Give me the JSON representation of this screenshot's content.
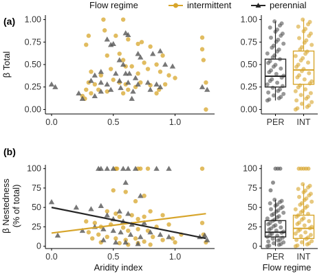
{
  "colors": {
    "intermittent": "#d7a52b",
    "perennial": "#262626",
    "point_perennial": "#555555"
  },
  "legend": {
    "title": "Flow regime",
    "items": [
      "intermittent",
      "perennial"
    ]
  },
  "panels": {
    "a": "(a)",
    "b": "(b)"
  },
  "axes": {
    "a_ylabel": "β Total",
    "b_ylabel_line1": "β Nestedness",
    "b_ylabel_line2": "(% of total)",
    "xlabel_scatter": "Aridity index",
    "xlabel_box": "Flow regime"
  },
  "chart_data": [
    {
      "type": "scatter",
      "panel": "a-left",
      "xlabel": "",
      "ylabel": "β Total",
      "xlim": [
        -0.05,
        1.32
      ],
      "ylim": [
        -0.05,
        1.05
      ],
      "xticks": [
        "0.0",
        "0.5",
        "1.0"
      ],
      "yticks": [
        "0.00",
        "0.25",
        "0.50",
        "0.75",
        "1.00"
      ],
      "series": [
        {
          "name": "intermittent",
          "marker": "circle",
          "points": [
            [
              0.42,
              1.0
            ],
            [
              0.43,
              0.88
            ],
            [
              0.58,
              1.0
            ],
            [
              0.3,
              0.82
            ],
            [
              0.28,
              0.72
            ],
            [
              0.62,
              0.78
            ],
            [
              0.52,
              0.82
            ],
            [
              0.7,
              0.73
            ],
            [
              0.73,
              0.75
            ],
            [
              0.8,
              0.7
            ],
            [
              0.55,
              0.62
            ],
            [
              0.58,
              0.55
            ],
            [
              0.6,
              0.48
            ],
            [
              0.45,
              0.6
            ],
            [
              0.48,
              0.45
            ],
            [
              0.65,
              0.48
            ],
            [
              0.7,
              0.4
            ],
            [
              0.78,
              0.45
            ],
            [
              0.75,
              0.52
            ],
            [
              0.85,
              0.5
            ],
            [
              0.88,
              0.42
            ],
            [
              0.32,
              0.42
            ],
            [
              0.4,
              0.38
            ],
            [
              0.5,
              0.33
            ],
            [
              0.55,
              0.3
            ],
            [
              0.6,
              0.28
            ],
            [
              0.68,
              0.25
            ],
            [
              0.72,
              0.3
            ],
            [
              0.8,
              0.27
            ],
            [
              0.92,
              0.28
            ],
            [
              0.95,
              0.38
            ],
            [
              0.3,
              0.3
            ],
            [
              0.35,
              0.28
            ],
            [
              0.38,
              0.22
            ],
            [
              0.32,
              0.18
            ],
            [
              0.28,
              0.22
            ],
            [
              0.25,
              0.15
            ],
            [
              0.27,
              0.12
            ],
            [
              0.45,
              0.2
            ],
            [
              0.58,
              0.18
            ],
            [
              0.62,
              0.22
            ],
            [
              0.85,
              0.18
            ],
            [
              0.87,
              0.22
            ],
            [
              1.22,
              0.8
            ],
            [
              1.22,
              0.67
            ],
            [
              1.23,
              0.55
            ],
            [
              1.25,
              0.3
            ],
            [
              1.25,
              0.0
            ],
            [
              0.9,
              0.6
            ],
            [
              1.0,
              0.35
            ]
          ]
        },
        {
          "name": "perennial",
          "marker": "triangle",
          "points": [
            [
              0.6,
              0.85
            ],
            [
              0.62,
              0.83
            ],
            [
              0.45,
              0.78
            ],
            [
              0.5,
              0.73
            ],
            [
              0.48,
              0.72
            ],
            [
              0.7,
              0.62
            ],
            [
              0.72,
              0.58
            ],
            [
              0.55,
              0.55
            ],
            [
              0.58,
              0.5
            ],
            [
              0.82,
              0.62
            ],
            [
              0.88,
              0.65
            ],
            [
              0.92,
              0.5
            ],
            [
              0.98,
              0.48
            ],
            [
              0.63,
              0.4
            ],
            [
              0.68,
              0.35
            ],
            [
              0.52,
              0.4
            ],
            [
              0.6,
              0.4
            ],
            [
              0.4,
              0.42
            ],
            [
              0.35,
              0.38
            ],
            [
              0.32,
              0.32
            ],
            [
              0.4,
              0.3
            ],
            [
              0.45,
              0.28
            ],
            [
              0.55,
              0.32
            ],
            [
              0.62,
              0.3
            ],
            [
              0.7,
              0.28
            ],
            [
              0.78,
              0.3
            ],
            [
              0.85,
              0.28
            ],
            [
              0.88,
              0.25
            ],
            [
              0.4,
              0.2
            ],
            [
              0.48,
              0.22
            ],
            [
              0.56,
              0.24
            ],
            [
              0.66,
              0.2
            ],
            [
              0.8,
              0.22
            ],
            [
              0.35,
              0.15
            ],
            [
              0.25,
              0.12
            ],
            [
              0.22,
              0.18
            ],
            [
              0.0,
              0.28
            ],
            [
              0.03,
              0.25
            ],
            [
              0.65,
              0.12
            ],
            [
              1.22,
              0.25
            ],
            [
              1.26,
              0.22
            ]
          ]
        }
      ]
    },
    {
      "type": "box",
      "panel": "a-right",
      "categories": [
        "PER",
        "INT"
      ],
      "ylim": [
        -0.05,
        1.05
      ],
      "yticks": [
        "0.00",
        "0.25",
        "0.50",
        "0.75",
        "1.00"
      ],
      "series": [
        {
          "name": "PER",
          "min": 0.1,
          "q1": 0.25,
          "median": 0.37,
          "q3": 0.56,
          "max": 0.98
        },
        {
          "name": "INT",
          "min": 0.0,
          "q1": 0.28,
          "median": 0.44,
          "q3": 0.65,
          "max": 1.0
        }
      ]
    },
    {
      "type": "scatter",
      "panel": "b-left",
      "xlabel": "Aridity index",
      "ylabel": "β Nestedness (% of total)",
      "xlim": [
        -0.05,
        1.32
      ],
      "ylim": [
        -3,
        105
      ],
      "xticks": [
        "0.0",
        "0.5",
        "1.0"
      ],
      "yticks": [
        "0",
        "25",
        "50",
        "75",
        "100"
      ],
      "series": [
        {
          "name": "intermittent",
          "marker": "circle",
          "points": [
            [
              0.52,
              100
            ],
            [
              0.53,
              100
            ],
            [
              0.7,
              100
            ],
            [
              0.72,
              100
            ],
            [
              0.78,
              100
            ],
            [
              1.22,
              100
            ],
            [
              0.5,
              72
            ],
            [
              0.6,
              70
            ],
            [
              0.75,
              65
            ],
            [
              0.68,
              58
            ],
            [
              0.45,
              45
            ],
            [
              0.52,
              42
            ],
            [
              0.55,
              38
            ],
            [
              0.65,
              40
            ],
            [
              0.7,
              35
            ],
            [
              0.75,
              38
            ],
            [
              0.8,
              45
            ],
            [
              0.9,
              40
            ],
            [
              0.28,
              32
            ],
            [
              0.35,
              30
            ],
            [
              0.4,
              25
            ],
            [
              0.48,
              28
            ],
            [
              0.58,
              24
            ],
            [
              0.62,
              20
            ],
            [
              0.7,
              22
            ],
            [
              0.78,
              20
            ],
            [
              0.85,
              25
            ],
            [
              0.95,
              28
            ],
            [
              0.3,
              18
            ],
            [
              0.38,
              15
            ],
            [
              0.45,
              12
            ],
            [
              0.52,
              10
            ],
            [
              0.6,
              8
            ],
            [
              0.68,
              10
            ],
            [
              0.75,
              6
            ],
            [
              0.82,
              12
            ],
            [
              0.9,
              8
            ],
            [
              0.98,
              10
            ],
            [
              0.55,
              4
            ],
            [
              0.62,
              2
            ],
            [
              0.7,
              4
            ],
            [
              0.8,
              2
            ],
            [
              1.0,
              5
            ],
            [
              1.05,
              15
            ],
            [
              1.22,
              30
            ],
            [
              1.23,
              15
            ],
            [
              1.25,
              5
            ],
            [
              0.4,
              5
            ],
            [
              0.33,
              10
            ]
          ]
        },
        {
          "name": "perennial",
          "marker": "triangle",
          "points": [
            [
              0.38,
              100
            ],
            [
              0.4,
              100
            ],
            [
              0.45,
              100
            ],
            [
              0.5,
              100
            ],
            [
              0.58,
              100
            ],
            [
              0.62,
              100
            ],
            [
              0.68,
              100
            ],
            [
              0.85,
              100
            ],
            [
              0.95,
              100
            ],
            [
              0.6,
              82
            ],
            [
              0.72,
              65
            ],
            [
              0.0,
              57
            ],
            [
              0.2,
              50
            ],
            [
              0.4,
              52
            ],
            [
              0.32,
              48
            ],
            [
              0.55,
              45
            ],
            [
              0.62,
              42
            ],
            [
              0.45,
              40
            ],
            [
              0.5,
              35
            ],
            [
              0.58,
              32
            ],
            [
              0.65,
              28
            ],
            [
              0.75,
              30
            ],
            [
              0.35,
              25
            ],
            [
              0.42,
              22
            ],
            [
              0.5,
              20
            ],
            [
              0.56,
              18
            ],
            [
              0.64,
              15
            ],
            [
              0.72,
              12
            ],
            [
              0.8,
              18
            ],
            [
              0.88,
              15
            ],
            [
              0.95,
              12
            ],
            [
              0.42,
              8
            ],
            [
              0.52,
              5
            ],
            [
              0.6,
              5
            ],
            [
              0.7,
              3
            ],
            [
              0.05,
              14
            ],
            [
              0.25,
              20
            ],
            [
              1.2,
              12
            ],
            [
              1.24,
              14
            ],
            [
              1.26,
              8
            ]
          ]
        }
      ],
      "fits": [
        {
          "name": "intermittent",
          "x": [
            0.0,
            1.25
          ],
          "y": [
            17,
            42
          ]
        },
        {
          "name": "perennial",
          "x": [
            0.0,
            1.25
          ],
          "y": [
            50,
            10
          ]
        }
      ]
    },
    {
      "type": "box",
      "panel": "b-right",
      "xlabel": "Flow regime",
      "categories": [
        "PER",
        "INT"
      ],
      "ylim": [
        -3,
        105
      ],
      "yticks": [
        "0",
        "25",
        "50",
        "75",
        "100"
      ],
      "series": [
        {
          "name": "PER",
          "min": 0,
          "q1": 12,
          "median": 18,
          "q3": 33,
          "max": 60,
          "outliers": [
            72,
            82,
            100,
            100,
            100
          ]
        },
        {
          "name": "INT",
          "min": 0,
          "q1": 10,
          "median": 23,
          "q3": 40,
          "max": 80,
          "outliers": [
            100,
            100,
            100,
            100,
            100
          ]
        }
      ]
    }
  ]
}
